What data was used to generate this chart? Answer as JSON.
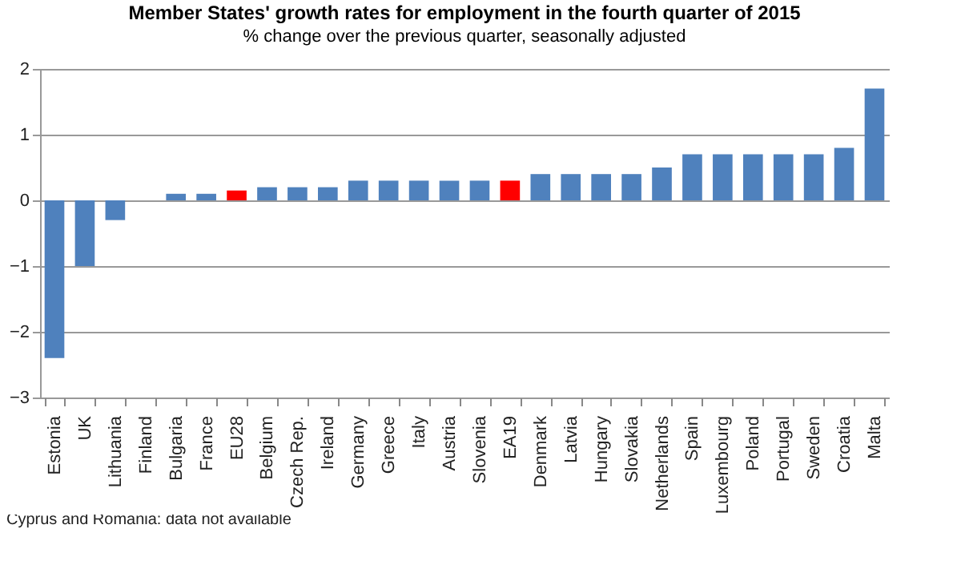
{
  "chart_data": {
    "type": "bar",
    "title": "Member States' growth rates for employment in the fourth quarter of 2015",
    "subtitle": "% change over the previous quarter, seasonally adjusted",
    "categories": [
      "Estonia",
      "UK",
      "Lithuania",
      "Finland",
      "Bulgaria",
      "France",
      "EU28",
      "Belgium",
      "Czech Rep.",
      "Ireland",
      "Germany",
      "Greece",
      "Italy",
      "Austria",
      "Slovenia",
      "EA19",
      "Denmark",
      "Latvia",
      "Hungary",
      "Slovakia",
      "Netherlands",
      "Spain",
      "Luxembourg",
      "Poland",
      "Portugal",
      "Sweden",
      "Croatia",
      "Malta"
    ],
    "values": [
      -2.4,
      -1.0,
      -0.3,
      0,
      0.1,
      0.1,
      0.15,
      0.2,
      0.2,
      0.2,
      0.3,
      0.3,
      0.3,
      0.3,
      0.3,
      0.3,
      0.4,
      0.4,
      0.4,
      0.4,
      0.5,
      0.7,
      0.7,
      0.7,
      0.7,
      0.7,
      0.8,
      1.7
    ],
    "colors": [
      "#4f81bd",
      "#4f81bd",
      "#4f81bd",
      "#4f81bd",
      "#4f81bd",
      "#4f81bd",
      "#ff0000",
      "#4f81bd",
      "#4f81bd",
      "#4f81bd",
      "#4f81bd",
      "#4f81bd",
      "#4f81bd",
      "#4f81bd",
      "#4f81bd",
      "#ff0000",
      "#4f81bd",
      "#4f81bd",
      "#4f81bd",
      "#4f81bd",
      "#4f81bd",
      "#4f81bd",
      "#4f81bd",
      "#4f81bd",
      "#4f81bd",
      "#4f81bd",
      "#4f81bd",
      "#4f81bd"
    ],
    "ylim": [
      -3,
      2
    ],
    "yticks": [
      -3,
      -2,
      -1,
      0,
      1,
      2
    ],
    "grid": "y",
    "annotations": [
      "Cyprus and Romania: data not available"
    ]
  }
}
